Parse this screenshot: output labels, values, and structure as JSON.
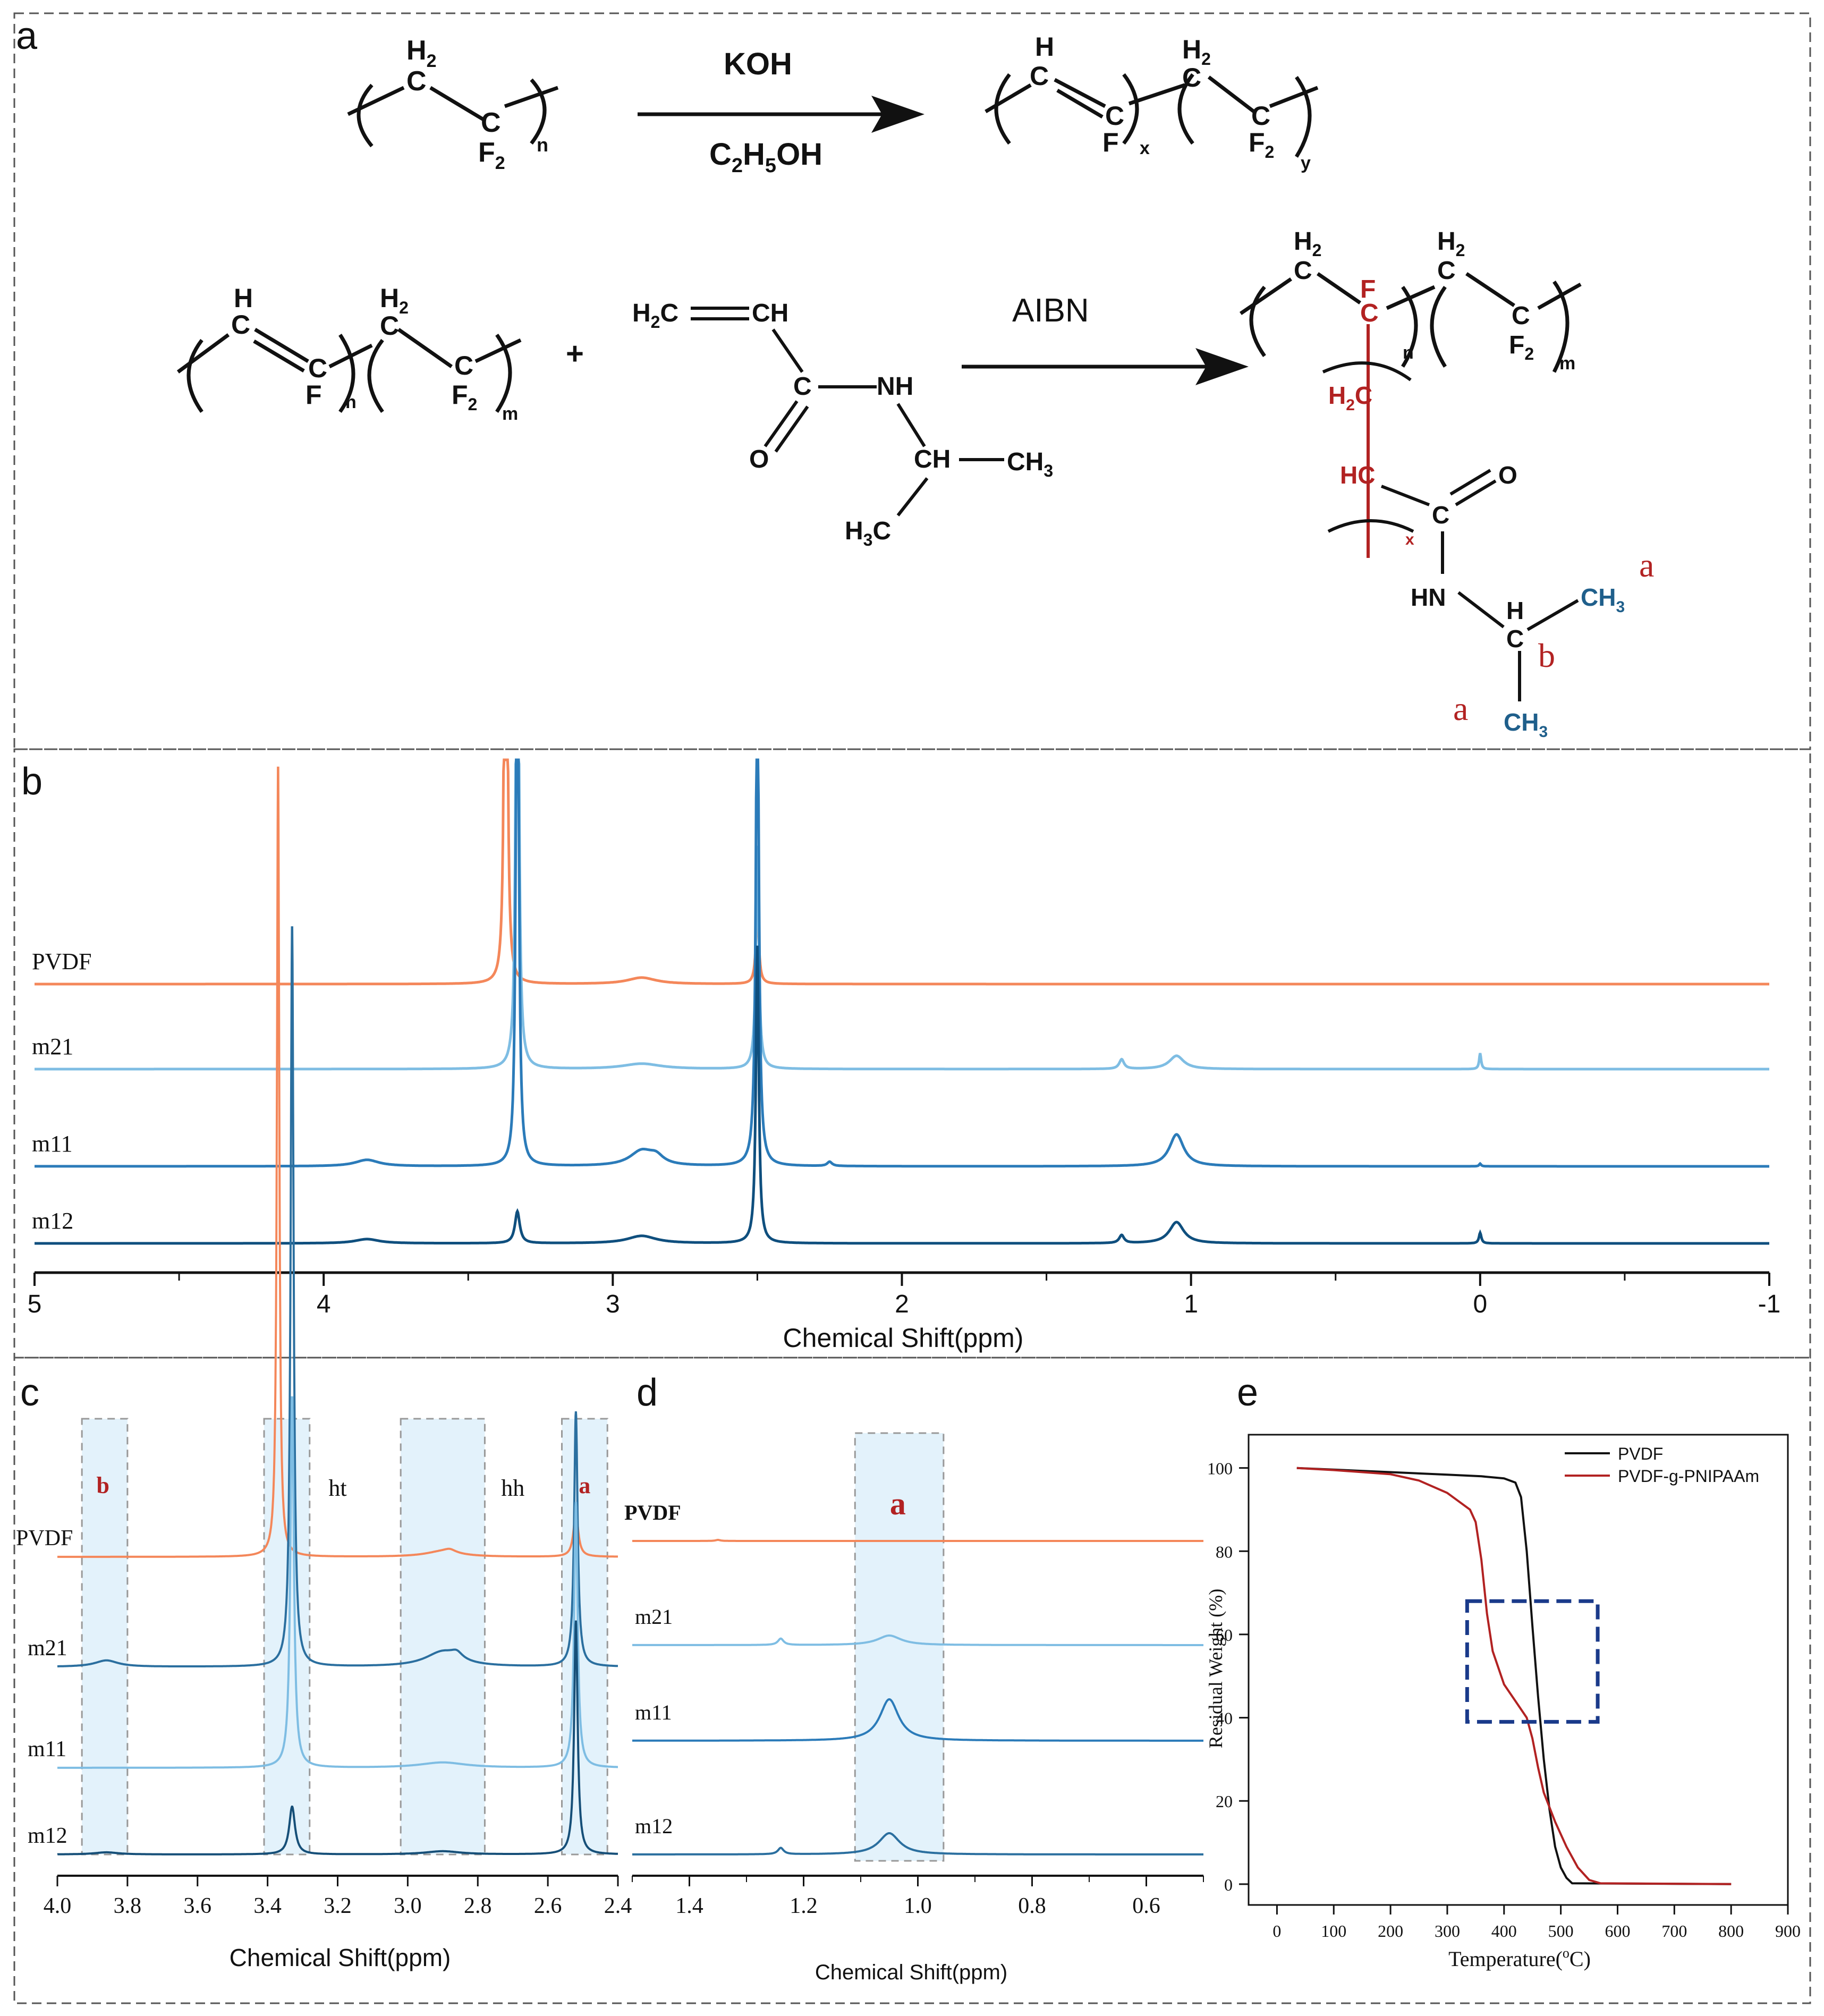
{
  "panels": {
    "a": "a",
    "b": "b",
    "c": "c",
    "d": "d",
    "e": "e"
  },
  "scheme": {
    "reaction1": {
      "reactant": {
        "h2": "H",
        "h2_sub": "2",
        "c_top": "C",
        "c_bot": "C",
        "f2": "F",
        "f2_sub": "2",
        "n": "n"
      },
      "reagent_top": "KOH",
      "reagent_bot": {
        "c": "C",
        "c_sub": "2",
        "h": "H",
        "h_sub": "5",
        "oh": "OH"
      },
      "product": {
        "h": "H",
        "c1": "C",
        "c2": "C",
        "f": "F",
        "x": "x",
        "h2": "H",
        "h2_sub": "2",
        "c3": "C",
        "c4": "C",
        "f2": "F",
        "f2_sub": "2",
        "y": "y"
      }
    },
    "reaction2": {
      "reactant_a": {
        "h": "H",
        "c1": "C",
        "c2": "C",
        "f": "F",
        "n": "n",
        "h2": "H",
        "h2_sub": "2",
        "c3": "C",
        "c4": "C",
        "f2": "F",
        "f2_sub": "2",
        "m": "m"
      },
      "plus": "+",
      "monomer": {
        "h2c": "H",
        "h2c_sub": "2",
        "h2c_c": "C",
        "ch": "CH",
        "c": "C",
        "o": "O",
        "nh": "NH",
        "ch2": "CH",
        "ch3": "CH",
        "ch3_sub": "3",
        "h3c": "H",
        "h3c_sub": "3",
        "h3c_c": "C"
      },
      "reagent": "AIBN",
      "product": {
        "h2": "H",
        "h2_sub": "2",
        "c1": "C",
        "f": "F",
        "c2": "C",
        "n": "n",
        "h2b": "H",
        "h2b_sub": "2",
        "c3": "C",
        "c4": "C",
        "f2": "F",
        "f2_sub": "2",
        "m": "m",
        "h2c": "H",
        "h2c_sub": "2",
        "h2c_c": "C",
        "hc": "HC",
        "x": "x",
        "c5": "C",
        "o": "O",
        "hn": "HN",
        "h": "H",
        "c6": "C",
        "ch3_top": "CH",
        "ch3_top_sub": "3",
        "ch3_bot": "CH",
        "ch3_bot_sub": "3",
        "label_a1": "a",
        "label_a2": "a",
        "label_b": "b"
      }
    }
  },
  "panel_b": {
    "xlabel": "Chemical Shift(ppm)",
    "xlim": [
      5,
      -1
    ],
    "xticks": [
      "5",
      "4",
      "3",
      "2",
      "1",
      "0",
      "-1"
    ],
    "traces": [
      {
        "name": "PVDF",
        "color": "#f4875a"
      },
      {
        "name": "m21",
        "color": "#7ebde3"
      },
      {
        "name": "m11",
        "color": "#2b7bb9"
      },
      {
        "name": "m12",
        "color": "#0f4f7e"
      }
    ]
  },
  "panel_c": {
    "xlabel": "Chemical Shift(ppm)",
    "xlim": [
      4.0,
      2.4
    ],
    "xticks": [
      "4.0",
      "3.8",
      "3.6",
      "3.4",
      "3.2",
      "3.0",
      "2.8",
      "2.6",
      "2.4"
    ],
    "traces": [
      {
        "name": "PVDF",
        "color": "#f4875a"
      },
      {
        "name": "m21",
        "color": "#2b6f9f"
      },
      {
        "name": "m11",
        "color": "#7ebde3"
      },
      {
        "name": "m12",
        "color": "#164f78"
      }
    ],
    "labels": {
      "b": "b",
      "ht": "ht",
      "hh": "hh",
      "a": "a"
    }
  },
  "panel_d": {
    "xlabel": "Chemical Shift(ppm)",
    "xlim": [
      1.5,
      0.5
    ],
    "xticks": [
      "1.4",
      "1.2",
      "1.0",
      "0.8",
      "0.6"
    ],
    "traces": [
      {
        "name": "PVDF",
        "color": "#f4875a"
      },
      {
        "name": "m21",
        "color": "#7ebde3"
      },
      {
        "name": "m11",
        "color": "#2b7bb9"
      },
      {
        "name": "m12",
        "color": "#2b6f9f"
      }
    ],
    "label": "a"
  },
  "chart_data": {
    "type": "line",
    "xlabel": {
      "text": "Temperature(",
      "sup": "o",
      "unit": "C)"
    },
    "ylabel": "Residual Weight (%)",
    "xlim": [
      -50,
      900
    ],
    "ylim": [
      -5,
      108
    ],
    "xticks": [
      0,
      100,
      200,
      300,
      400,
      500,
      600,
      700,
      800,
      900
    ],
    "yticks": [
      0,
      20,
      40,
      60,
      80,
      100
    ],
    "legend": "top-right",
    "series": [
      {
        "name": "PVDF",
        "color": "#111111",
        "x": [
          35,
          100,
          200,
          300,
          360,
          400,
          420,
          430,
          440,
          450,
          460,
          470,
          480,
          490,
          500,
          510,
          520,
          800
        ],
        "y": [
          100,
          99.6,
          99,
          98.4,
          98,
          97.5,
          96.5,
          93,
          80,
          62,
          45,
          30,
          18,
          9,
          4,
          1.5,
          0.2,
          0
        ]
      },
      {
        "name": "PVDF-g-PNIPAAm",
        "color": "#b22222",
        "x": [
          35,
          100,
          200,
          250,
          300,
          320,
          340,
          350,
          360,
          370,
          380,
          400,
          420,
          440,
          450,
          460,
          470,
          490,
          510,
          530,
          550,
          570,
          800
        ],
        "y": [
          100,
          99.5,
          98.5,
          97,
          94,
          92,
          90,
          87,
          78,
          65,
          56,
          48,
          44,
          40,
          35,
          28,
          22,
          15,
          9,
          4,
          1,
          0.2,
          0
        ]
      }
    ]
  }
}
